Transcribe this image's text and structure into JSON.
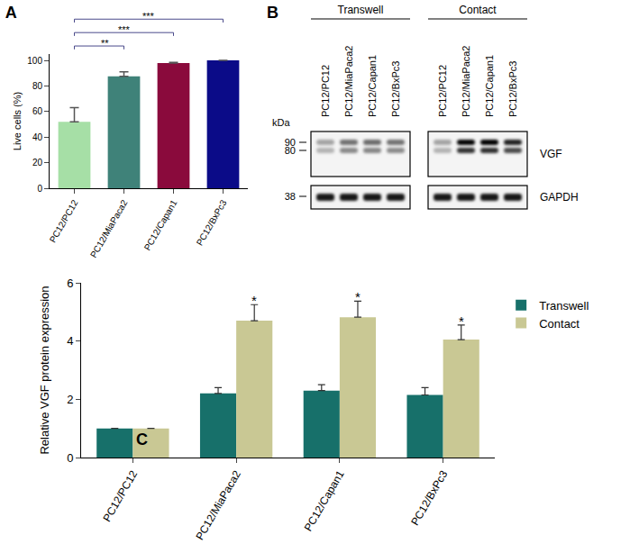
{
  "chart_data": [
    {
      "type": "bar",
      "title": "A",
      "categories": [
        "PC12/PC12",
        "PC12/MiaPaca2",
        "PC12/Capan1",
        "PC12/BxPc3"
      ],
      "values": [
        52,
        87.5,
        98,
        100
      ],
      "errors": [
        11,
        3.5,
        0.5,
        0
      ],
      "colors": [
        "#a6dfa6",
        "#3f8279",
        "#8a0a3c",
        "#0b0b88"
      ],
      "ylabel": "Live cells (%)",
      "ylim": [
        0,
        105
      ],
      "yticks": [
        0,
        20,
        40,
        60,
        80,
        100
      ],
      "annotations": [
        {
          "text": "**",
          "from": "PC12/PC12",
          "to": "PC12/MiaPaca2"
        },
        {
          "text": "***",
          "from": "PC12/PC12",
          "to": "PC12/Capan1"
        },
        {
          "text": "***",
          "from": "PC12/PC12",
          "to": "PC12/BxPc3"
        }
      ]
    },
    {
      "type": "bar",
      "title": "C",
      "categories": [
        "PC12/PC12",
        "PC12/MiaPaca2",
        "PC12/Capan1",
        "PC12/BxPc3"
      ],
      "series": [
        {
          "name": "Transwell",
          "color": "#17706a",
          "values": [
            1,
            2.2,
            2.3,
            2.15
          ],
          "errors": [
            0,
            0.2,
            0.2,
            0.25
          ]
        },
        {
          "name": "Contact",
          "color": "#c9c894",
          "values": [
            1,
            4.7,
            4.82,
            4.05
          ],
          "errors": [
            0,
            0.55,
            0.55,
            0.5
          ]
        }
      ],
      "ylabel": "Relative VGF protein expression",
      "ylim": [
        0,
        6
      ],
      "yticks": [
        0,
        2,
        4,
        6
      ],
      "legend": "upper right",
      "annotations": [
        {
          "text": "*",
          "category": "PC12/MiaPaca2",
          "series": "Contact"
        },
        {
          "text": "*",
          "category": "PC12/Capan1",
          "series": "Contact"
        },
        {
          "text": "*",
          "category": "PC12/BxPc3",
          "series": "Contact"
        }
      ]
    }
  ],
  "blot": {
    "title": "B",
    "unit": "kDa",
    "groups": [
      {
        "label": "Transwell",
        "lanes": [
          "PC12/PC12",
          "PC12/MiaPaca2",
          "PC12/Capan1",
          "PC12/BxPc3"
        ]
      },
      {
        "label": "Contact",
        "lanes": [
          "PC12/PC12",
          "PC12/MiaPaca2",
          "PC12/Capan1",
          "PC12/BxPc3"
        ]
      }
    ],
    "rows": [
      {
        "label": "VGF",
        "markers": [
          90,
          80
        ]
      },
      {
        "label": "GAPDH",
        "markers": [
          38
        ]
      }
    ]
  }
}
